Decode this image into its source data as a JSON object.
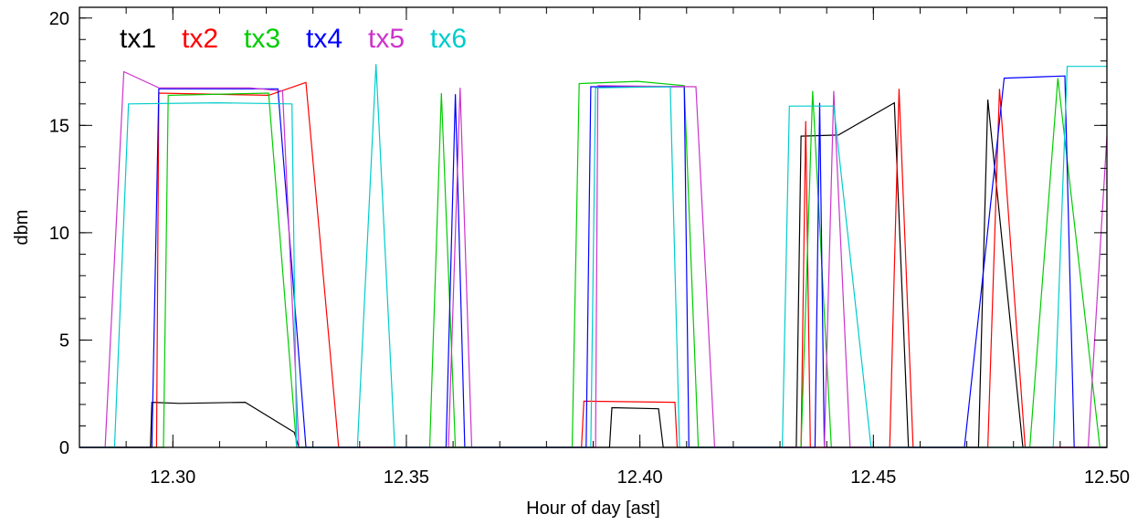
{
  "chart_data": {
    "type": "line",
    "title": "",
    "xlabel": "Hour of day [ast]",
    "ylabel": "dbm",
    "xlim": [
      12.28,
      12.5
    ],
    "ylim": [
      0,
      20.5
    ],
    "xticks": [
      12.3,
      12.35,
      12.4,
      12.45,
      12.5
    ],
    "xtick_labels": [
      "12.30",
      "12.35",
      "12.40",
      "12.45",
      "12.50"
    ],
    "yticks": [
      0,
      5,
      10,
      15,
      20
    ],
    "ytick_labels": [
      "0",
      "5",
      "10",
      "15",
      "20"
    ],
    "grid": false,
    "legend": "top-left",
    "series": [
      {
        "name": "tx1",
        "color": "#000000",
        "points": [
          [
            12.28,
            0
          ],
          [
            12.2952,
            0
          ],
          [
            12.2955,
            2.1
          ],
          [
            12.3015,
            2.05
          ],
          [
            12.3155,
            2.1
          ],
          [
            12.326,
            0.7
          ],
          [
            12.327,
            0
          ],
          [
            12.3935,
            0
          ],
          [
            12.394,
            1.85
          ],
          [
            12.404,
            1.8
          ],
          [
            12.405,
            0
          ],
          [
            12.4335,
            0
          ],
          [
            12.4345,
            14.5
          ],
          [
            12.4425,
            14.55
          ],
          [
            12.4545,
            16.05
          ],
          [
            12.4575,
            0
          ],
          [
            12.4725,
            0
          ],
          [
            12.4745,
            16.2
          ],
          [
            12.482,
            0
          ],
          [
            12.5,
            0
          ]
        ]
      },
      {
        "name": "tx2",
        "color": "#ff0000",
        "points": [
          [
            12.28,
            0
          ],
          [
            12.2965,
            0
          ],
          [
            12.297,
            16.5
          ],
          [
            12.3205,
            16.4
          ],
          [
            12.3285,
            17.0
          ],
          [
            12.3355,
            0
          ],
          [
            12.3875,
            0
          ],
          [
            12.388,
            2.15
          ],
          [
            12.4075,
            2.1
          ],
          [
            12.408,
            0
          ],
          [
            12.4345,
            0
          ],
          [
            12.4355,
            15.2
          ],
          [
            12.4365,
            0
          ],
          [
            12.4535,
            0
          ],
          [
            12.4555,
            16.7
          ],
          [
            12.4585,
            0
          ],
          [
            12.4745,
            0
          ],
          [
            12.477,
            16.7
          ],
          [
            12.4825,
            0
          ],
          [
            12.5,
            0
          ]
        ]
      },
      {
        "name": "tx3",
        "color": "#00cc00",
        "points": [
          [
            12.28,
            0
          ],
          [
            12.298,
            0
          ],
          [
            12.299,
            16.4
          ],
          [
            12.3205,
            16.5
          ],
          [
            12.3265,
            0
          ],
          [
            12.355,
            0
          ],
          [
            12.3575,
            16.5
          ],
          [
            12.3605,
            0
          ],
          [
            12.3855,
            0
          ],
          [
            12.387,
            16.95
          ],
          [
            12.3995,
            17.05
          ],
          [
            12.4095,
            16.85
          ],
          [
            12.4125,
            0
          ],
          [
            12.4345,
            0
          ],
          [
            12.437,
            16.6
          ],
          [
            12.441,
            0
          ],
          [
            12.4835,
            0
          ],
          [
            12.4895,
            17.2
          ],
          [
            12.4985,
            0
          ],
          [
            12.5,
            0
          ]
        ]
      },
      {
        "name": "tx4",
        "color": "#0000ff",
        "points": [
          [
            12.28,
            0
          ],
          [
            12.2955,
            0
          ],
          [
            12.297,
            16.7
          ],
          [
            12.3225,
            16.7
          ],
          [
            12.3285,
            0
          ],
          [
            12.3585,
            0
          ],
          [
            12.3605,
            16.45
          ],
          [
            12.3625,
            0
          ],
          [
            12.3885,
            0
          ],
          [
            12.3895,
            16.8
          ],
          [
            12.4095,
            16.8
          ],
          [
            12.4105,
            0
          ],
          [
            12.4375,
            0
          ],
          [
            12.4385,
            16.05
          ],
          [
            12.4395,
            0
          ],
          [
            12.4695,
            0
          ],
          [
            12.478,
            17.2
          ],
          [
            12.491,
            17.3
          ],
          [
            12.493,
            0
          ],
          [
            12.5,
            0
          ]
        ]
      },
      {
        "name": "tx5",
        "color": "#cc33cc",
        "points": [
          [
            12.28,
            0
          ],
          [
            12.2855,
            0
          ],
          [
            12.2895,
            17.5
          ],
          [
            12.297,
            16.75
          ],
          [
            12.3165,
            16.75
          ],
          [
            12.3235,
            16.6
          ],
          [
            12.327,
            0
          ],
          [
            12.359,
            0
          ],
          [
            12.3615,
            16.75
          ],
          [
            12.364,
            0
          ],
          [
            12.3905,
            0
          ],
          [
            12.391,
            16.85
          ],
          [
            12.412,
            16.8
          ],
          [
            12.416,
            0
          ],
          [
            12.4395,
            0
          ],
          [
            12.4415,
            16.6
          ],
          [
            12.445,
            0
          ],
          [
            12.496,
            0
          ],
          [
            12.5,
            14.5
          ]
        ]
      },
      {
        "name": "tx6",
        "color": "#00cccc",
        "points": [
          [
            12.28,
            0
          ],
          [
            12.2875,
            0
          ],
          [
            12.2905,
            16.0
          ],
          [
            12.3095,
            16.05
          ],
          [
            12.3255,
            16.0
          ],
          [
            12.3265,
            0
          ],
          [
            12.3395,
            0
          ],
          [
            12.3435,
            17.85
          ],
          [
            12.3475,
            0
          ],
          [
            12.3895,
            0
          ],
          [
            12.3905,
            16.75
          ],
          [
            12.4065,
            16.8
          ],
          [
            12.4085,
            0
          ],
          [
            12.4305,
            0
          ],
          [
            12.432,
            15.9
          ],
          [
            12.4415,
            15.9
          ],
          [
            12.4495,
            0
          ],
          [
            12.4885,
            0
          ],
          [
            12.4915,
            17.75
          ],
          [
            12.5,
            17.75
          ]
        ]
      }
    ]
  }
}
